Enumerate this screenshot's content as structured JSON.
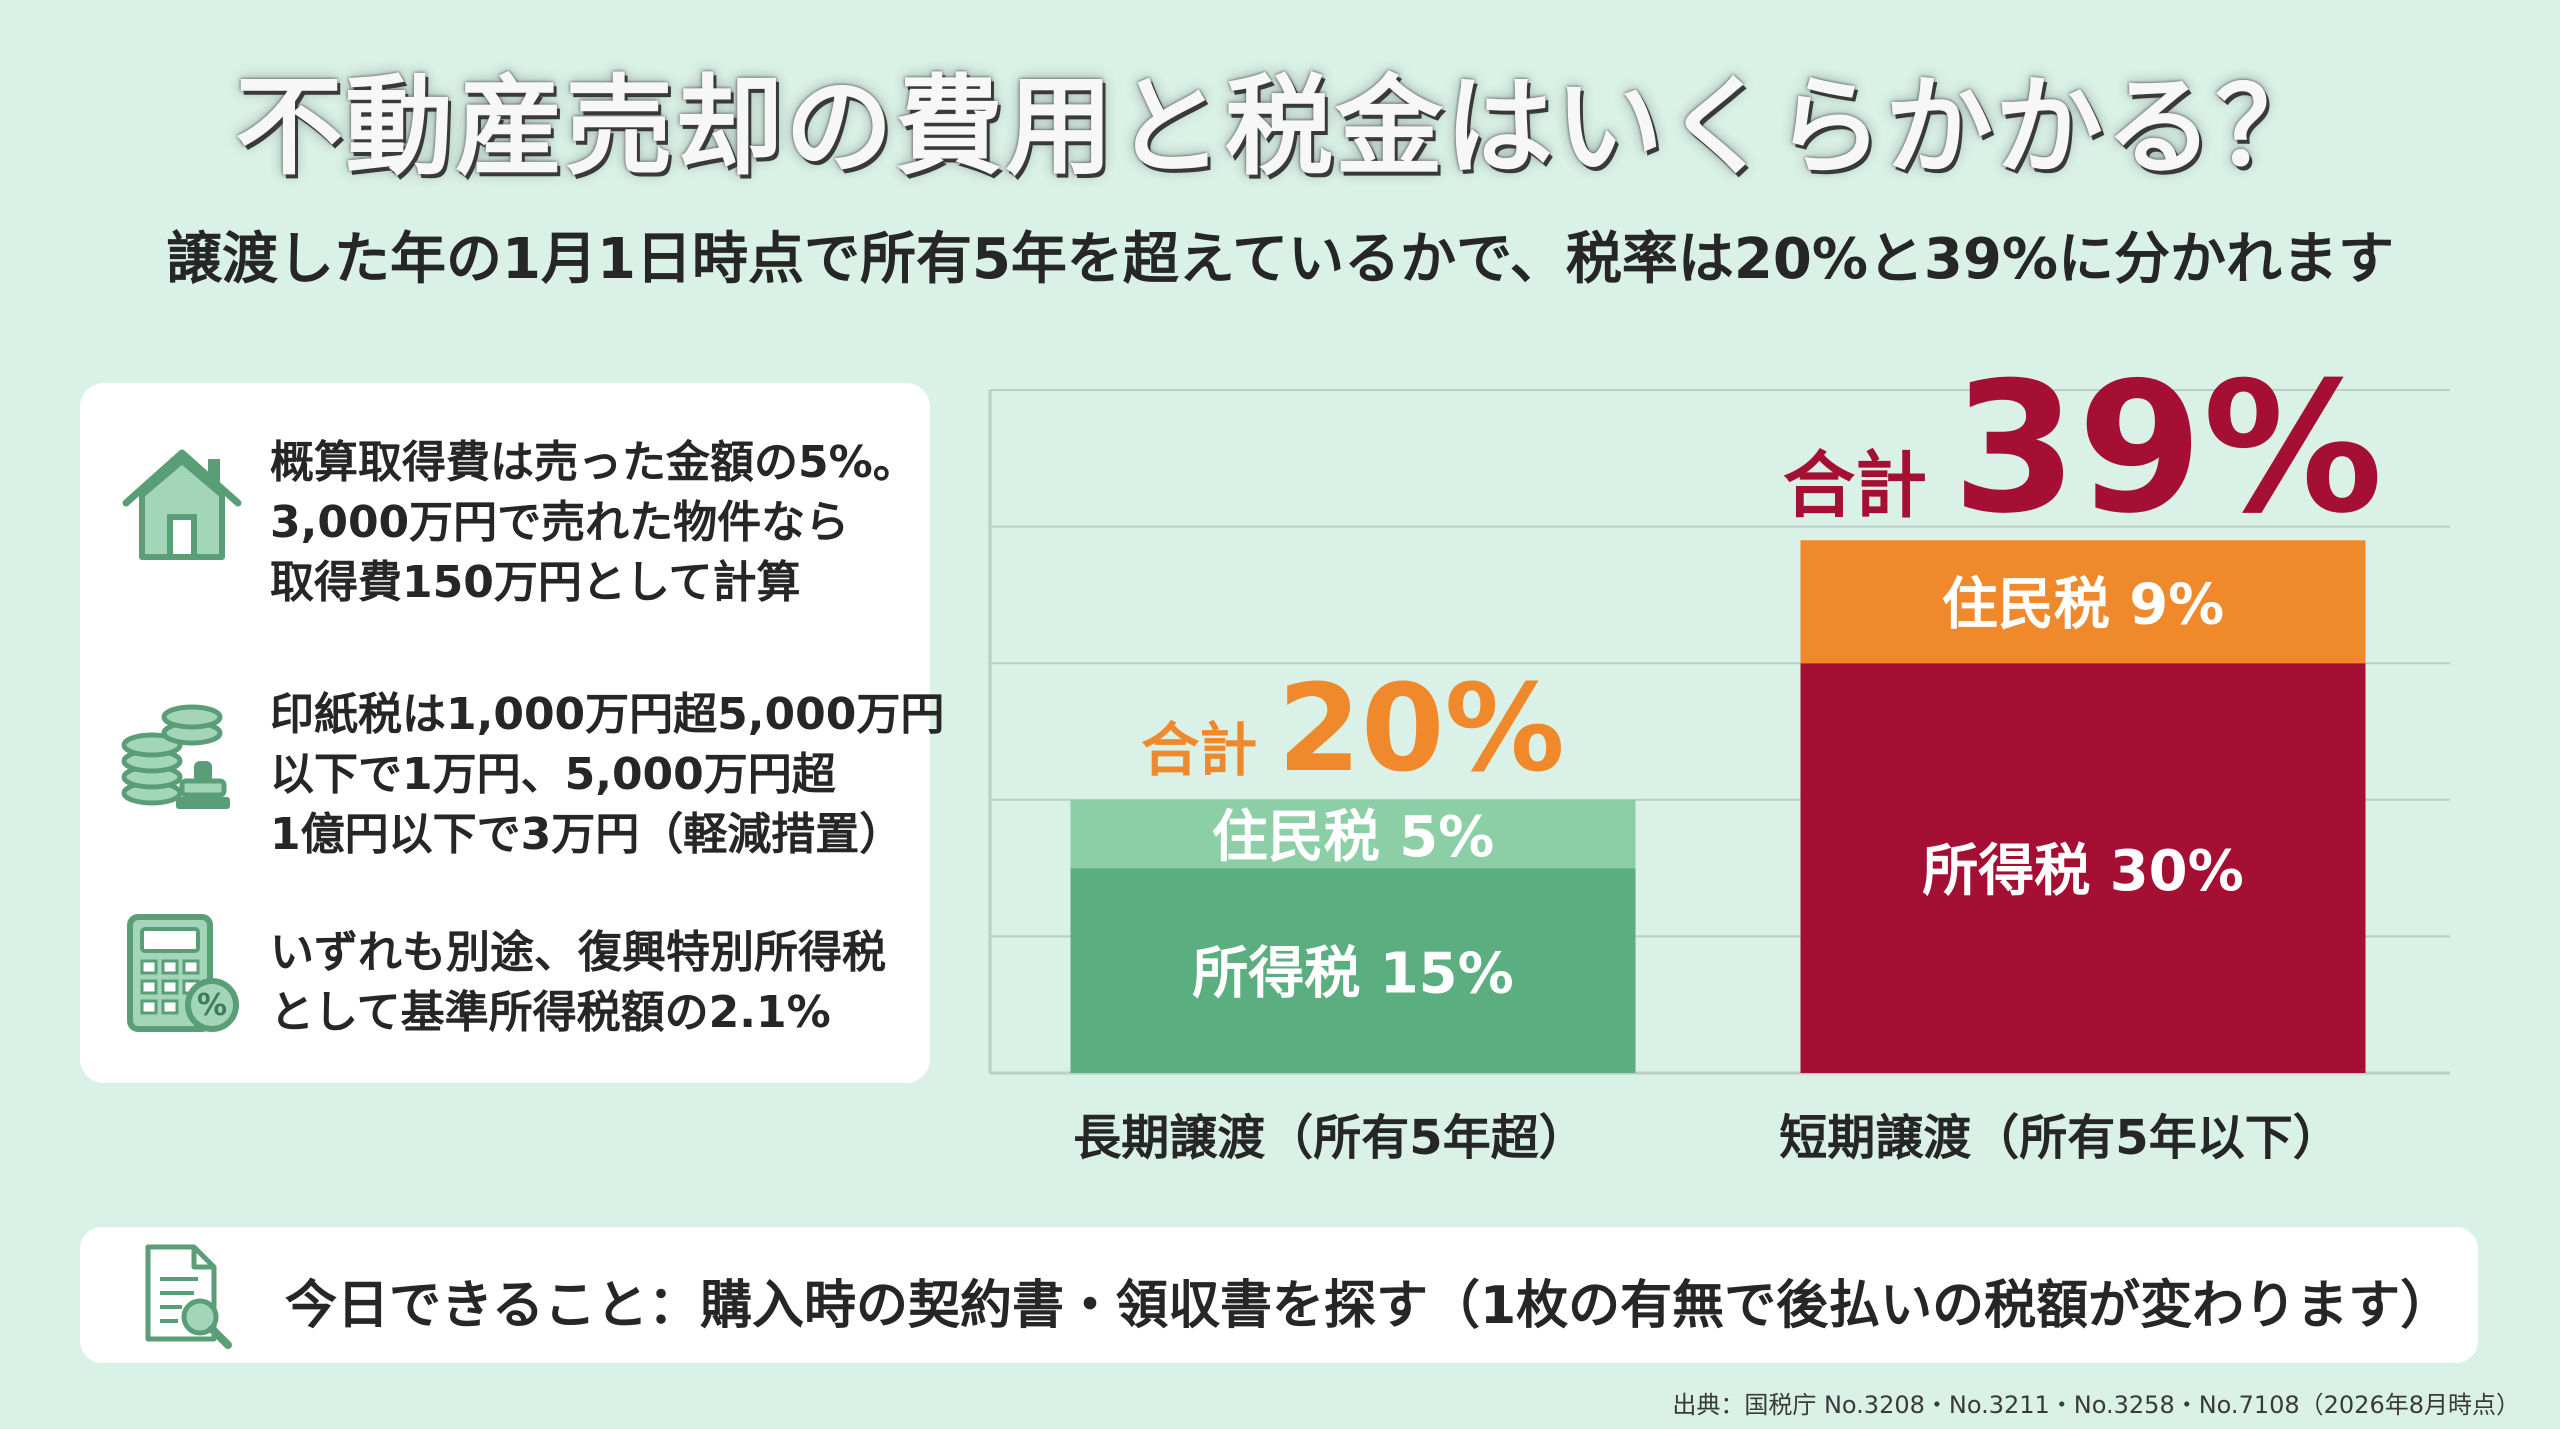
{
  "title": "不動産売却の費用と税金はいくらかかる？",
  "subtitle": "譲渡した年の1月1日時点で所有5年を超えているかで、税率は20%と39%に分かれます",
  "info_items": [
    {
      "icon": "house-icon",
      "lines": [
        "概算取得費は売った金額の5%。",
        "3,000万円で売れた物件なら",
        "取得費150万円として計算"
      ]
    },
    {
      "icon": "coins-stamp-icon",
      "lines": [
        "印紙税は1,000万円超5,000万円",
        "以下で1万円、5,000万円超",
        "1億円以下で3万円（軽減措置）"
      ]
    },
    {
      "icon": "calculator-icon",
      "lines": [
        "いずれも別途、復興特別所得税",
        "として基準所得税額の2.1%"
      ]
    }
  ],
  "chart_data": {
    "type": "bar",
    "stacked": true,
    "categories": [
      "長期譲渡（所有5年超）",
      "短期譲渡（所有5年以下）"
    ],
    "series": [
      {
        "name": "所得税",
        "values": [
          15,
          30
        ],
        "labels": [
          "所得税 15%",
          "所得税 30%"
        ],
        "colors": [
          "#5aae7f",
          "#a50f33"
        ]
      },
      {
        "name": "住民税",
        "values": [
          5,
          9
        ],
        "labels": [
          "住民税 5%",
          "住民税 9%"
        ],
        "colors": [
          "#8ccfa6",
          "#f0892c"
        ]
      }
    ],
    "totals": [
      {
        "prefix": "合計",
        "value": "20%",
        "color": "#f0892c"
      },
      {
        "prefix": "合計",
        "value": "39%",
        "color": "#a50f33"
      }
    ],
    "ylim": [
      0,
      50
    ],
    "grid": true
  },
  "bottom": {
    "icon": "document-search-icon",
    "text": "今日できること：購入時の契約書・領収書を探す（1枚の有無で後払いの税額が変わります）"
  },
  "source": "出典：国税庁 No.3208・No.3211・No.3258・No.7108（2026年8月時点）",
  "colors": {
    "background": "#d9f1e6",
    "icon_green": "#5a9e77"
  }
}
